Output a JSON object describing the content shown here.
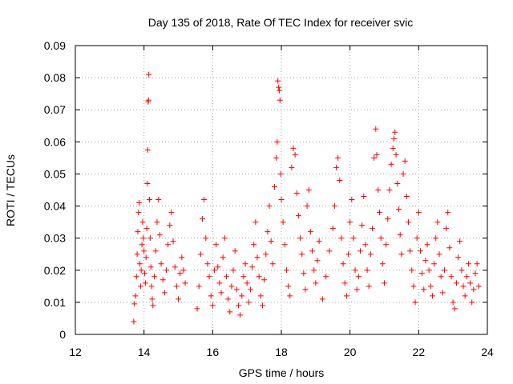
{
  "chart_data": {
    "type": "scatter",
    "title": "Day 135 of 2018, Rate Of TEC Index for receiver svic",
    "xlabel": "GPS time / hours",
    "ylabel": "ROTI / TECUs",
    "xlim": [
      12,
      24
    ],
    "ylim": [
      0,
      0.09
    ],
    "xticks": [
      12,
      14,
      16,
      18,
      20,
      22,
      24
    ],
    "xtick_labels": [
      "12",
      "14",
      "16",
      "18",
      "20",
      "22",
      "24"
    ],
    "yticks": [
      0,
      0.01,
      0.02,
      0.03,
      0.04,
      0.05,
      0.06,
      0.07,
      0.08,
      0.09
    ],
    "ytick_labels": [
      "0",
      "0.01",
      "0.02",
      "0.03",
      "0.04",
      "0.05",
      "0.06",
      "0.07",
      "0.08",
      "0.09"
    ],
    "grid": true,
    "marker": "+",
    "color": "#ff0000",
    "series": [
      {
        "name": "ROTI",
        "points": [
          [
            13.7,
            0.004
          ],
          [
            13.72,
            0.0095
          ],
          [
            13.75,
            0.012
          ],
          [
            13.78,
            0.018
          ],
          [
            13.8,
            0.025
          ],
          [
            13.82,
            0.032
          ],
          [
            13.84,
            0.038
          ],
          [
            13.86,
            0.041
          ],
          [
            13.88,
            0.022
          ],
          [
            13.9,
            0.015
          ],
          [
            13.92,
            0.02
          ],
          [
            13.94,
            0.028
          ],
          [
            13.96,
            0.035
          ],
          [
            13.98,
            0.03
          ],
          [
            14.0,
            0.026
          ],
          [
            14.02,
            0.019
          ],
          [
            14.04,
            0.016
          ],
          [
            14.06,
            0.024
          ],
          [
            14.08,
            0.033
          ],
          [
            14.1,
            0.047
          ],
          [
            14.11,
            0.0575
          ],
          [
            14.12,
            0.0725
          ],
          [
            14.13,
            0.073
          ],
          [
            14.14,
            0.081
          ],
          [
            14.16,
            0.042
          ],
          [
            14.18,
            0.03
          ],
          [
            14.2,
            0.021
          ],
          [
            14.22,
            0.015
          ],
          [
            14.24,
            0.011
          ],
          [
            14.26,
            0.009
          ],
          [
            14.3,
            0.018
          ],
          [
            14.34,
            0.026
          ],
          [
            14.38,
            0.035
          ],
          [
            14.42,
            0.042
          ],
          [
            14.46,
            0.031
          ],
          [
            14.5,
            0.022
          ],
          [
            14.55,
            0.017
          ],
          [
            14.6,
            0.013
          ],
          [
            14.65,
            0.02
          ],
          [
            14.7,
            0.028
          ],
          [
            14.75,
            0.034
          ],
          [
            14.8,
            0.038
          ],
          [
            14.85,
            0.029
          ],
          [
            14.9,
            0.021
          ],
          [
            14.95,
            0.015
          ],
          [
            15.0,
            0.011
          ],
          [
            15.05,
            0.019
          ],
          [
            15.1,
            0.024
          ],
          [
            15.15,
            0.02
          ],
          [
            15.2,
            0.016
          ],
          [
            15.55,
            0.008
          ],
          [
            15.6,
            0.015
          ],
          [
            15.65,
            0.025
          ],
          [
            15.7,
            0.036
          ],
          [
            15.75,
            0.042
          ],
          [
            15.8,
            0.03
          ],
          [
            15.85,
            0.022
          ],
          [
            15.9,
            0.018
          ],
          [
            15.95,
            0.012
          ],
          [
            16.0,
            0.009
          ],
          [
            16.05,
            0.02
          ],
          [
            16.1,
            0.028
          ],
          [
            16.15,
            0.021
          ],
          [
            16.2,
            0.016
          ],
          [
            16.25,
            0.013
          ],
          [
            16.3,
            0.024
          ],
          [
            16.35,
            0.03
          ],
          [
            16.4,
            0.018
          ],
          [
            16.45,
            0.011
          ],
          [
            16.5,
            0.007
          ],
          [
            16.55,
            0.015
          ],
          [
            16.6,
            0.02
          ],
          [
            16.65,
            0.026
          ],
          [
            16.7,
            0.014
          ],
          [
            16.75,
            0.009
          ],
          [
            16.8,
            0.006
          ],
          [
            16.85,
            0.012
          ],
          [
            16.9,
            0.018
          ],
          [
            16.95,
            0.022
          ],
          [
            17.0,
            0.016
          ],
          [
            17.05,
            0.01
          ],
          [
            17.1,
            0.014
          ],
          [
            17.15,
            0.021
          ],
          [
            17.2,
            0.028
          ],
          [
            17.25,
            0.035
          ],
          [
            17.3,
            0.024
          ],
          [
            17.35,
            0.018
          ],
          [
            17.4,
            0.012
          ],
          [
            17.45,
            0.009
          ],
          [
            17.5,
            0.017
          ],
          [
            17.55,
            0.025
          ],
          [
            17.6,
            0.032
          ],
          [
            17.65,
            0.04
          ],
          [
            17.7,
            0.029
          ],
          [
            17.75,
            0.022
          ],
          [
            17.8,
            0.046
          ],
          [
            17.85,
            0.055
          ],
          [
            17.88,
            0.06
          ],
          [
            17.9,
            0.079
          ],
          [
            17.92,
            0.077
          ],
          [
            17.94,
            0.076
          ],
          [
            17.96,
            0.073
          ],
          [
            17.98,
            0.05
          ],
          [
            18.0,
            0.042
          ],
          [
            18.05,
            0.035
          ],
          [
            18.1,
            0.028
          ],
          [
            18.15,
            0.02
          ],
          [
            18.2,
            0.015
          ],
          [
            18.25,
            0.012
          ],
          [
            18.3,
            0.052
          ],
          [
            18.35,
            0.058
          ],
          [
            18.4,
            0.056
          ],
          [
            18.45,
            0.044
          ],
          [
            18.5,
            0.037
          ],
          [
            18.55,
            0.03
          ],
          [
            18.6,
            0.025
          ],
          [
            18.65,
            0.019
          ],
          [
            18.7,
            0.014
          ],
          [
            18.75,
            0.04
          ],
          [
            18.8,
            0.045
          ],
          [
            18.85,
            0.032
          ],
          [
            18.9,
            0.026
          ],
          [
            18.95,
            0.02
          ],
          [
            19.0,
            0.016
          ],
          [
            19.05,
            0.023
          ],
          [
            19.1,
            0.029
          ],
          [
            19.2,
            0.011
          ],
          [
            19.3,
            0.018
          ],
          [
            19.4,
            0.026
          ],
          [
            19.5,
            0.033
          ],
          [
            19.55,
            0.04
          ],
          [
            19.6,
            0.052
          ],
          [
            19.65,
            0.055
          ],
          [
            19.7,
            0.048
          ],
          [
            19.75,
            0.03
          ],
          [
            19.8,
            0.022
          ],
          [
            19.85,
            0.016
          ],
          [
            19.9,
            0.012
          ],
          [
            19.95,
            0.025
          ],
          [
            20.0,
            0.035
          ],
          [
            20.05,
            0.042
          ],
          [
            20.1,
            0.03
          ],
          [
            20.15,
            0.02
          ],
          [
            20.2,
            0.014
          ],
          [
            20.25,
            0.018
          ],
          [
            20.3,
            0.026
          ],
          [
            20.35,
            0.034
          ],
          [
            20.4,
            0.043
          ],
          [
            20.45,
            0.028
          ],
          [
            20.5,
            0.02
          ],
          [
            20.55,
            0.015
          ],
          [
            20.6,
            0.025
          ],
          [
            20.65,
            0.033
          ],
          [
            20.7,
            0.055
          ],
          [
            20.75,
            0.064
          ],
          [
            20.78,
            0.056
          ],
          [
            20.82,
            0.045
          ],
          [
            20.86,
            0.038
          ],
          [
            20.9,
            0.03
          ],
          [
            20.95,
            0.022
          ],
          [
            21.0,
            0.016
          ],
          [
            21.05,
            0.028
          ],
          [
            21.1,
            0.036
          ],
          [
            21.15,
            0.045
          ],
          [
            21.2,
            0.053
          ],
          [
            21.25,
            0.058
          ],
          [
            21.28,
            0.061
          ],
          [
            21.31,
            0.063
          ],
          [
            21.34,
            0.056
          ],
          [
            21.38,
            0.047
          ],
          [
            21.42,
            0.039
          ],
          [
            21.46,
            0.031
          ],
          [
            21.5,
            0.025
          ],
          [
            21.55,
            0.05
          ],
          [
            21.6,
            0.054
          ],
          [
            21.65,
            0.043
          ],
          [
            21.7,
            0.035
          ],
          [
            21.75,
            0.026
          ],
          [
            21.8,
            0.02
          ],
          [
            21.85,
            0.015
          ],
          [
            21.9,
            0.01
          ],
          [
            21.95,
            0.03
          ],
          [
            22.0,
            0.038
          ],
          [
            22.05,
            0.026
          ],
          [
            22.1,
            0.019
          ],
          [
            22.15,
            0.014
          ],
          [
            22.2,
            0.023
          ],
          [
            22.25,
            0.028
          ],
          [
            22.3,
            0.02
          ],
          [
            22.35,
            0.015
          ],
          [
            22.4,
            0.012
          ],
          [
            22.45,
            0.022
          ],
          [
            22.5,
            0.03
          ],
          [
            22.55,
            0.035
          ],
          [
            22.6,
            0.025
          ],
          [
            22.65,
            0.018
          ],
          [
            22.7,
            0.013
          ],
          [
            22.75,
            0.02
          ],
          [
            22.8,
            0.033
          ],
          [
            22.85,
            0.038
          ],
          [
            22.9,
            0.027
          ],
          [
            22.95,
            0.018
          ],
          [
            23.0,
            0.01
          ],
          [
            23.05,
            0.008
          ],
          [
            23.1,
            0.016
          ],
          [
            23.15,
            0.024
          ],
          [
            23.2,
            0.029
          ],
          [
            23.25,
            0.02
          ],
          [
            23.3,
            0.015
          ],
          [
            23.35,
            0.012
          ],
          [
            23.4,
            0.018
          ],
          [
            23.45,
            0.022
          ],
          [
            23.5,
            0.016
          ],
          [
            23.55,
            0.01
          ],
          [
            23.6,
            0.014
          ],
          [
            23.65,
            0.019
          ],
          [
            23.7,
            0.022
          ],
          [
            23.75,
            0.015
          ]
        ]
      }
    ]
  }
}
